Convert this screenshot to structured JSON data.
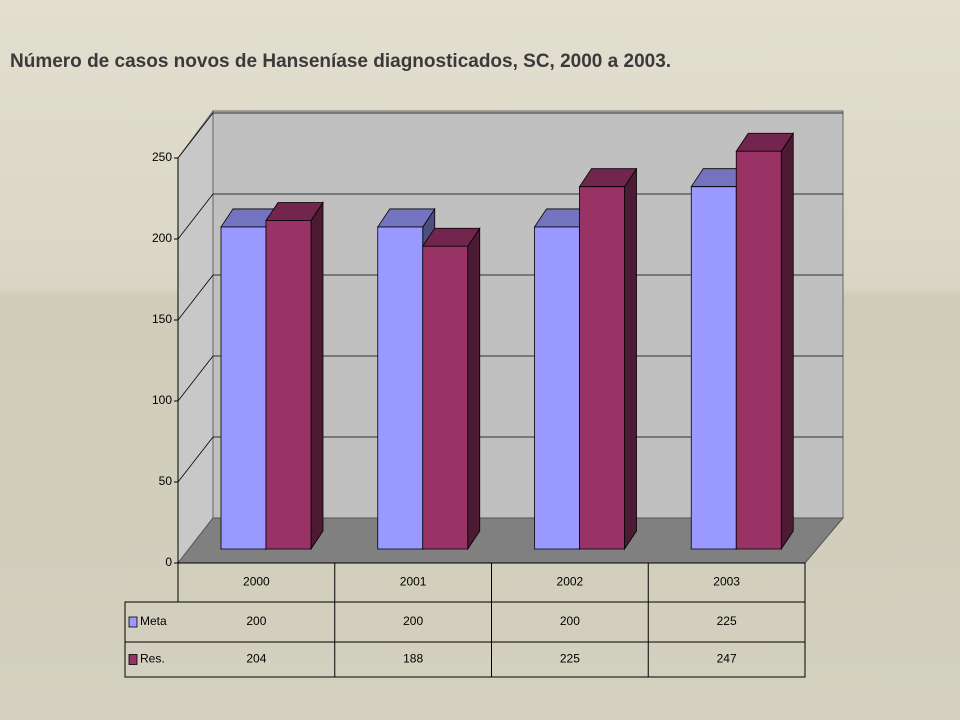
{
  "chart_data": {
    "type": "bar",
    "title": "Número de casos novos de Hanseníase diagnosticados, SC, 2000 a 2003.",
    "categories": [
      "2000",
      "2001",
      "2002",
      "2003"
    ],
    "series": [
      {
        "name": "Meta",
        "color": "#9999ff",
        "values": [
          200,
          200,
          200,
          225
        ]
      },
      {
        "name": "Res.",
        "color": "#993366",
        "values": [
          204,
          188,
          225,
          247
        ]
      }
    ],
    "ylim": [
      0,
      250
    ],
    "yticks": [
      0,
      50,
      100,
      150,
      200,
      250
    ],
    "grid": true
  }
}
